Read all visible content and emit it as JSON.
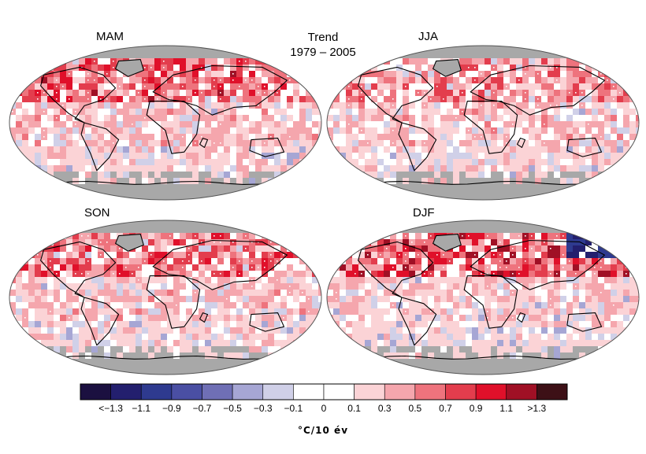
{
  "title": {
    "line1": "Trend",
    "line2": "1979 – 2005"
  },
  "panels": [
    {
      "label": "MAM",
      "pattern": "spring"
    },
    {
      "label": "JJA",
      "pattern": "summer"
    },
    {
      "label": "SON",
      "pattern": "autumn"
    },
    {
      "label": "DJF",
      "pattern": "winter"
    }
  ],
  "colorbar": {
    "unit": "°C/10 év",
    "tick_labels": [
      "<−1.3",
      "−1.1",
      "−0.9",
      "−0.7",
      "−0.5",
      "−0.3",
      "−0.1",
      "0",
      "0.1",
      "0.3",
      "0.5",
      "0.7",
      "0.9",
      "1.1",
      ">1.3"
    ],
    "bins": [
      {
        "range": "< -1.3",
        "color": "#1b1040"
      },
      {
        "range": "-1.3 to -1.1",
        "color": "#231f6e"
      },
      {
        "range": "-1.1 to -0.9",
        "color": "#2e3a8f"
      },
      {
        "range": "-0.9 to -0.7",
        "color": "#4a4fa3"
      },
      {
        "range": "-0.7 to -0.5",
        "color": "#6f6fb5"
      },
      {
        "range": "-0.5 to -0.3",
        "color": "#a6a6d4"
      },
      {
        "range": "-0.3 to -0.1",
        "color": "#d0d0e8"
      },
      {
        "range": "-0.1 to 0",
        "color": "#ffffff"
      },
      {
        "range": "0 to 0.1",
        "color": "#ffffff"
      },
      {
        "range": "0.1 to 0.3",
        "color": "#fbd3d6"
      },
      {
        "range": "0.3 to 0.5",
        "color": "#f5a6ad"
      },
      {
        "range": "0.5 to 0.7",
        "color": "#ee737d"
      },
      {
        "range": "0.7 to 0.9",
        "color": "#e33d4d"
      },
      {
        "range": "0.9 to 1.1",
        "color": "#e0102a"
      },
      {
        "range": "1.1 to 1.3",
        "color": "#a01025"
      },
      {
        "range": "> 1.3",
        "color": "#3d1016"
      }
    ]
  },
  "colors": {
    "missing_data": "#a8a8a8",
    "coast": "#000000",
    "significance_dot": "#ffffff"
  }
}
